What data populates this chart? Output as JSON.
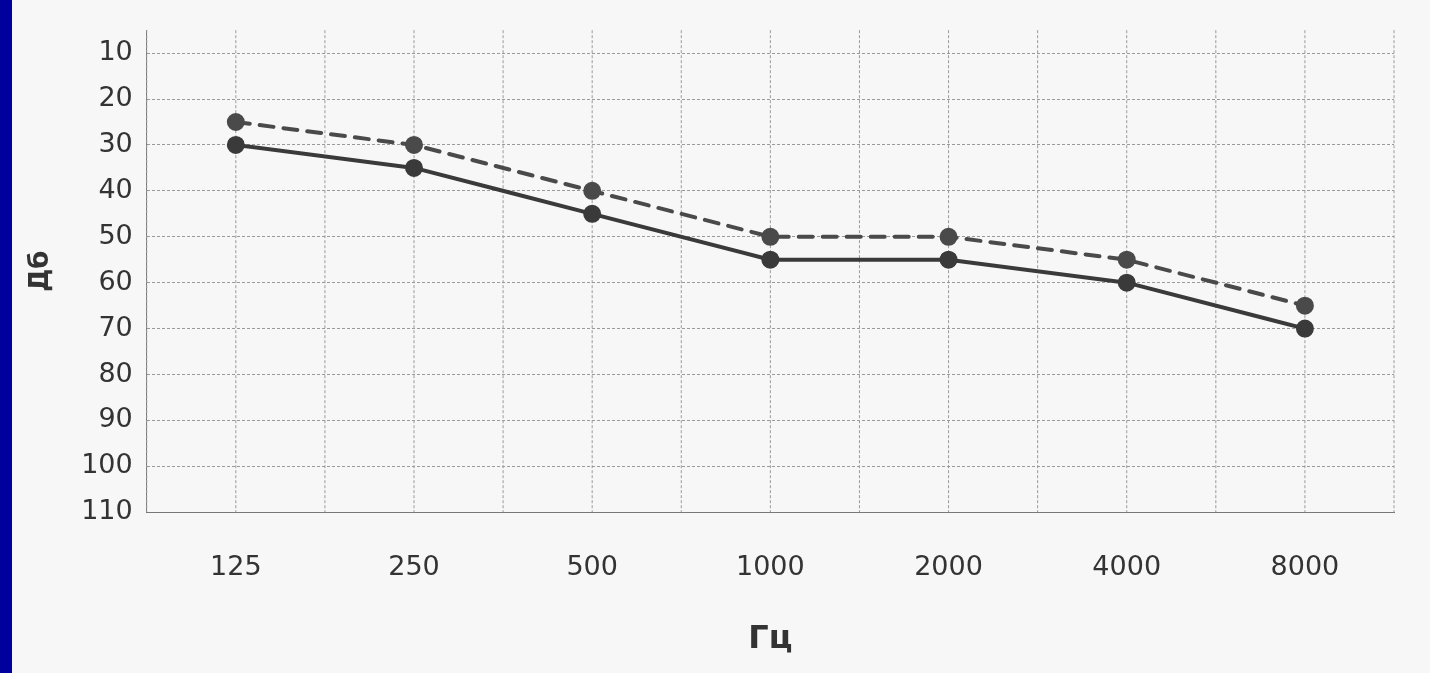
{
  "chart_data": {
    "type": "line",
    "xlabel": "Гц",
    "ylabel": "Дб",
    "categories": [
      "125",
      "250",
      "500",
      "1000",
      "2000",
      "4000",
      "8000"
    ],
    "series": [
      {
        "color": "#4a4a4a",
        "values": [
          25,
          30,
          40,
          50,
          50,
          55,
          65
        ],
        "line_style": "dashed"
      },
      {
        "color": "#3a3a3a",
        "values": [
          30,
          35,
          45,
          55,
          55,
          60,
          70
        ],
        "line_style": "solid"
      }
    ],
    "ylim": [
      110,
      5
    ],
    "yticks": [
      10,
      20,
      30,
      40,
      50,
      60,
      70,
      80,
      90,
      100,
      110
    ],
    "grid": true,
    "marker": "circle",
    "legend": false
  }
}
